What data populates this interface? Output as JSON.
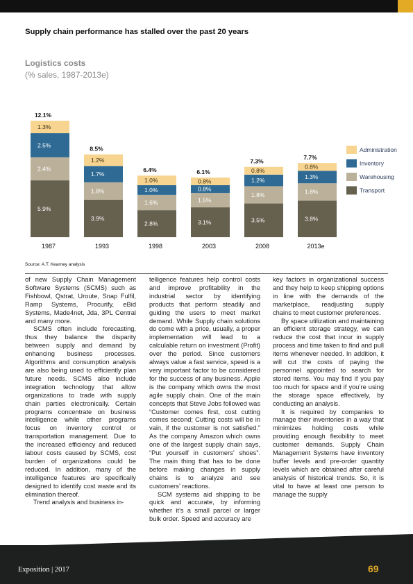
{
  "headline": "Supply chain performance has stalled over the past 20 years",
  "chart_data": {
    "type": "bar",
    "stacked": true,
    "title": "Logistics costs",
    "subtitle": "(% sales, 1987-2013e)",
    "categories": [
      "1987",
      "1993",
      "1998",
      "2003",
      "2008",
      "2013e"
    ],
    "totals": [
      "12.1%",
      "8.5%",
      "6.4%",
      "6.1%",
      "7.3%",
      "7.7%"
    ],
    "series": [
      {
        "name": "Transport",
        "color": "#66604f",
        "text_color": "#ffffff",
        "values": [
          5.9,
          3.9,
          2.8,
          3.1,
          3.5,
          3.8
        ],
        "labels": [
          "5.9%",
          "3.9%",
          "2.8%",
          "3.1%",
          "3.5%",
          "3.8%"
        ]
      },
      {
        "name": "Warehousing",
        "color": "#bbb19a",
        "text_color": "#ffffff",
        "values": [
          2.4,
          1.8,
          1.6,
          1.5,
          1.8,
          1.8
        ],
        "labels": [
          "2.4%",
          "1.8%",
          "1.6%",
          "1.5%",
          "1.8%",
          "1.8%"
        ]
      },
      {
        "name": "Inventory",
        "color": "#2e6a93",
        "text_color": "#ffffff",
        "values": [
          2.5,
          1.7,
          1.0,
          0.8,
          1.2,
          1.3
        ],
        "labels": [
          "2.5%",
          "1.7%",
          "1.0%",
          "0.8%",
          "1.2%",
          "1.3%"
        ]
      },
      {
        "name": "Administration",
        "color": "#f8d491",
        "text_color": "#3a2d10",
        "values": [
          1.3,
          1.2,
          1.0,
          0.8,
          0.8,
          0.8
        ],
        "labels": [
          "1.3%",
          "1.2%",
          "1.0%",
          "0.8%",
          "0.8%",
          "0.8%"
        ]
      }
    ],
    "legend": [
      "Administration",
      "Inventory",
      "Warehousing",
      "Transport"
    ],
    "legend_position": "right",
    "grid": false,
    "ylim": [
      0,
      12.1
    ]
  },
  "source": "Source: A.T. Kearney analysis",
  "columns": [
    [
      "of new Supply Chain Management Software Systems (SCMS) such as Fishbowl, Qstrat, Uroute, Snap Fulfil, Ramp Systems, Procurify, eBid Systems, Made4net, Jda, 3PL Central and many more.",
      "SCMS often include forecasting, thus they balance the disparity between supply and demand by enhancing business processes. Algorithms and consumption analysis are also being used to efficiently plan future needs. SCMS also include integration technology that allow organizations to trade with supply chain parties electronically. Certain programs concentrate on business intelligence while other programs focus on inventory control or transportation management. Due to the increased efficiency and reduced labour costs caused by SCMS, cost burden of organizations could be reduced. In addition, many of the intelligence features are specifically designed to identify cost waste and its elimination thereof.",
      "Trend analysis and business in-"
    ],
    [
      "telligence features help control costs and improve profitability in the industrial sector by identifying products that perform steadily and guiding the users to meet market demand. While Supply chain solutions do come with a price, usually, a proper implementation will lead to a calculable return on investment (Profit) over the period. Since customers always value a fast service, speed is a very important factor to be considered for the success of any business. Apple is the company which owns the most agile supply chain. One of the main concepts that Steve Jobs followed was “Customer comes first, cost cutting comes second; Cutting costs will be in vain, if the customer is not satisfied.” As the company Amazon which owns one of the largest supply chain says, “Put yourself in customers’ shoes”. The main thing that has to be done before making changes in supply chains is to analyze and see customers’ reactions.",
      "SCM systems aid shipping to be quick and accurate, by informing whether it’s a small parcel or larger bulk order. Speed and accuracy are"
    ],
    [
      "key factors in organizational success and they help to keep shipping options in line with the demands of the marketplace, readjusting supply chains to meet customer preferences.",
      "By space utilization and maintaining an efficient storage strategy, we can reduce the cost that incur in supply process and time taken to find and pull items whenever needed. In addition, it will cut the costs of paying the personnel appointed to search for stored items. You may find if you pay too much for space and if you’re using the storage space effectively, by conducting an analysis.",
      "It is required by companies to manage their inventories in a way that minimizes holding costs while providing enough flexibility to meet customer demands. Supply Chain Management Systems have inventory buffer levels and pre-order quantity levels which are obtained after careful analysis of historical trends. So, it is vital to have at least one person to manage the supply"
    ]
  ],
  "footer": {
    "publication": "Exposition | 2017",
    "page_number": "69"
  },
  "colors": {
    "accent": "#e3aa26",
    "footer_bg": "#1e201f"
  }
}
